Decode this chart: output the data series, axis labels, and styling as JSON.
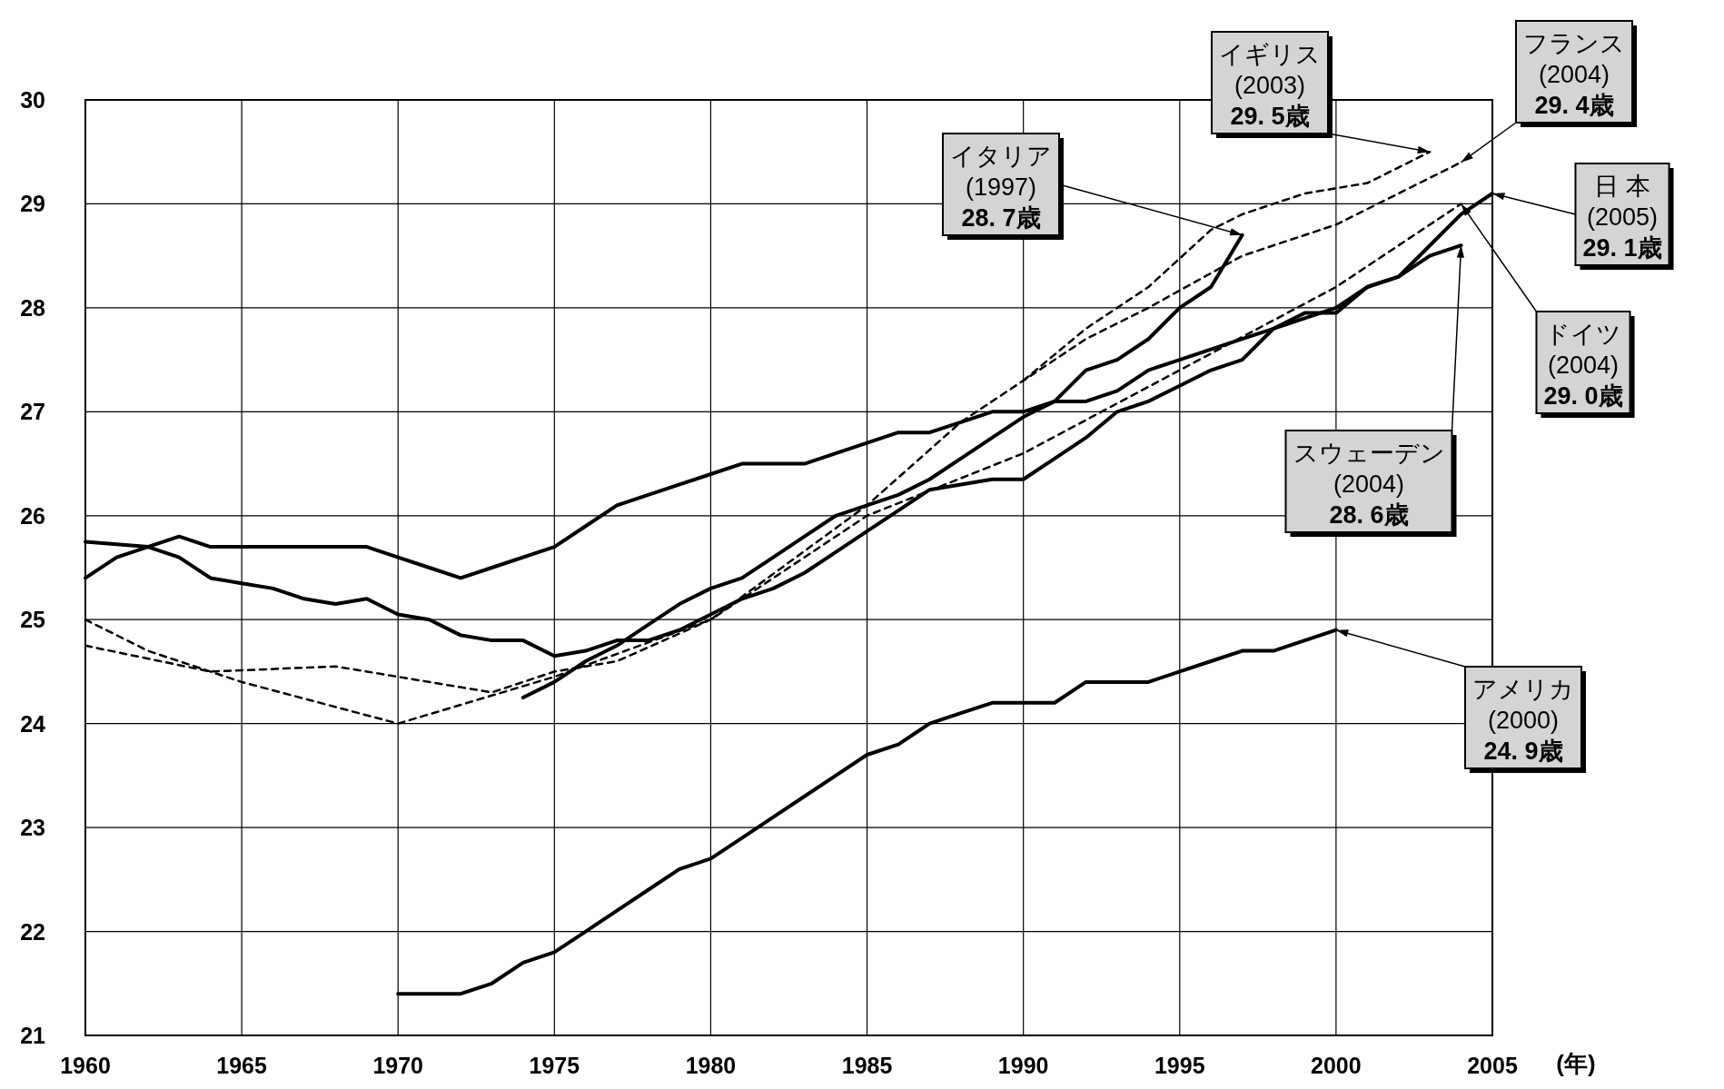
{
  "chart_data": {
    "type": "line",
    "xlabel": "(年)",
    "xlim": [
      1960,
      2005
    ],
    "ylim": [
      21,
      30
    ],
    "xticks": [
      1960,
      1965,
      1970,
      1975,
      1980,
      1985,
      1990,
      1995,
      2000,
      2005
    ],
    "yticks": [
      21,
      22,
      23,
      24,
      25,
      26,
      27,
      28,
      29,
      30
    ],
    "grid": true,
    "series": [
      {
        "color": "#000000",
        "line_style": "solid",
        "x": [
          1974,
          1975,
          1976,
          1977,
          1978,
          1979,
          1980,
          1981,
          1982,
          1983,
          1984,
          1985,
          1986,
          1987,
          1988,
          1989,
          1990,
          1991,
          1992,
          1993,
          1994,
          1995,
          1996,
          1997
        ],
        "values": [
          24.25,
          24.4,
          24.6,
          24.75,
          24.95,
          25.15,
          25.3,
          25.4,
          25.6,
          25.8,
          26.0,
          26.1,
          26.2,
          26.35,
          26.55,
          26.75,
          26.95,
          27.1,
          27.4,
          27.5,
          27.7,
          28.0,
          28.2,
          28.7
        ]
      },
      {
        "color": "#000000",
        "line_style": "dashed",
        "x": [
          1990,
          1992,
          1994,
          1996,
          1997,
          1999,
          2001,
          2003
        ],
        "values": [
          27.3,
          27.8,
          28.2,
          28.75,
          28.9,
          29.1,
          29.2,
          29.5
        ]
      },
      {
        "color": "#000000",
        "line_style": "dashed",
        "x": [
          1960,
          1962,
          1965,
          1970,
          1975,
          1980,
          1985,
          1988,
          1992,
          1994,
          1997,
          2000,
          2004
        ],
        "values": [
          25.0,
          24.7,
          24.4,
          24.0,
          24.45,
          25.0,
          26.1,
          26.9,
          27.7,
          28.0,
          28.5,
          28.8,
          29.4
        ]
      },
      {
        "color": "#000000",
        "line_style": "solid",
        "x": [
          1960,
          1961,
          1963,
          1964,
          1969,
          1970,
          1971,
          1972,
          1973,
          1975,
          1976,
          1977,
          1978,
          1980,
          1981,
          1983,
          1985,
          1986,
          1987,
          1988,
          1989,
          1990,
          1991,
          1992,
          1993,
          1994,
          1995,
          1996,
          1997,
          1998,
          1999,
          2000,
          2001,
          2002,
          2003,
          2004,
          2005
        ],
        "values": [
          25.4,
          25.6,
          25.8,
          25.7,
          25.7,
          25.6,
          25.5,
          25.4,
          25.5,
          25.7,
          25.9,
          26.1,
          26.2,
          26.4,
          26.5,
          26.5,
          26.7,
          26.8,
          26.8,
          26.9,
          27.0,
          27.0,
          27.1,
          27.1,
          27.2,
          27.4,
          27.5,
          27.6,
          27.7,
          27.8,
          27.9,
          28.0,
          28.2,
          28.3,
          28.6,
          28.9,
          29.1
        ]
      },
      {
        "color": "#000000",
        "line_style": "dashed",
        "x": [
          1960,
          1964,
          1968,
          1970,
          1973,
          1975,
          1977,
          1980,
          1985,
          1990,
          1995,
          2000,
          2004
        ],
        "values": [
          24.75,
          24.5,
          24.55,
          24.45,
          24.3,
          24.5,
          24.6,
          25.0,
          26.0,
          26.6,
          27.4,
          28.2,
          29.0
        ]
      },
      {
        "color": "#000000",
        "line_style": "solid",
        "x": [
          1960,
          1962,
          1963,
          1964,
          1965,
          1966,
          1967,
          1968,
          1969,
          1970,
          1971,
          1972,
          1973,
          1974,
          1975,
          1976,
          1977,
          1978,
          1979,
          1980,
          1981,
          1982,
          1983,
          1984,
          1985,
          1986,
          1987,
          1988,
          1989,
          1990,
          1991,
          1992,
          1993,
          1994,
          1995,
          1996,
          1997,
          1998,
          1999,
          2000,
          2001,
          2002,
          2003,
          2004
        ],
        "values": [
          25.75,
          25.7,
          25.6,
          25.4,
          25.35,
          25.3,
          25.2,
          25.15,
          25.2,
          25.05,
          25.0,
          24.85,
          24.8,
          24.8,
          24.65,
          24.7,
          24.8,
          24.8,
          24.9,
          25.05,
          25.2,
          25.3,
          25.45,
          25.65,
          25.85,
          26.05,
          26.25,
          26.3,
          26.35,
          26.35,
          26.55,
          26.75,
          27.0,
          27.1,
          27.25,
          27.4,
          27.5,
          27.8,
          27.95,
          27.95,
          28.2,
          28.3,
          28.5,
          28.6
        ]
      },
      {
        "color": "#000000",
        "line_style": "solid",
        "x": [
          1970,
          1972,
          1973,
          1974,
          1975,
          1976,
          1977,
          1978,
          1979,
          1980,
          1981,
          1982,
          1983,
          1984,
          1985,
          1986,
          1987,
          1988,
          1989,
          1991,
          1992,
          1994,
          1995,
          1996,
          1997,
          1998,
          1999,
          2000
        ],
        "values": [
          21.4,
          21.4,
          21.5,
          21.7,
          21.8,
          22.0,
          22.2,
          22.4,
          22.6,
          22.7,
          22.9,
          23.1,
          23.3,
          23.5,
          23.7,
          23.8,
          24.0,
          24.1,
          24.2,
          24.2,
          24.4,
          24.4,
          24.5,
          24.6,
          24.7,
          24.7,
          24.8,
          24.9
        ]
      }
    ],
    "annotations": [
      {
        "text": "イタリア\n(1997)\n28. 7歳",
        "x": 1997,
        "y": 28.7
      },
      {
        "text": "イギリス\n(2003)\n29. 5歳",
        "x": 2003,
        "y": 29.5
      },
      {
        "text": "フランス\n(2004)\n29. 4歳",
        "x": 2004,
        "y": 29.4
      },
      {
        "text": "日 本\n(2005)\n29. 1歳",
        "x": 2005,
        "y": 29.1
      },
      {
        "text": "ドイツ\n(2004)\n29. 0歳",
        "x": 2004,
        "y": 29.0
      },
      {
        "text": "スウェーデン\n(2004)\n28. 6歳",
        "x": 2004,
        "y": 28.6
      },
      {
        "text": "アメリカ\n(2000)\n24. 9歳",
        "x": 2000,
        "y": 24.9
      }
    ]
  }
}
